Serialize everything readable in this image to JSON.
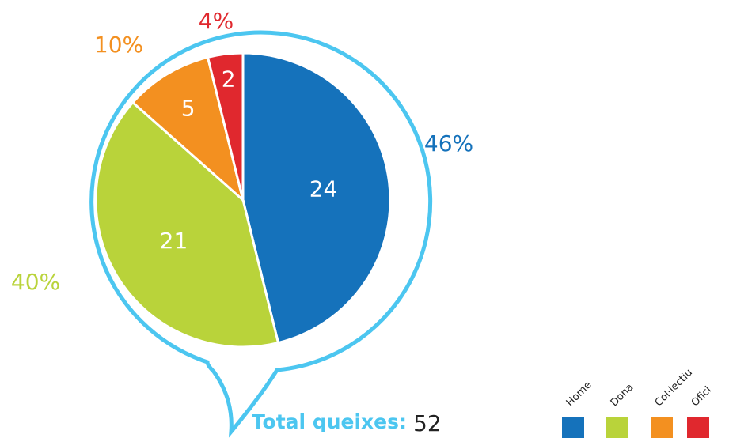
{
  "chart_data": {
    "type": "pie",
    "categories": [
      "Home",
      "Dona",
      "Col·lectiu",
      "Ofici"
    ],
    "values": [
      24,
      21,
      5,
      2
    ],
    "percent_labels": [
      "46%",
      "40%",
      "10%",
      "4%"
    ],
    "colors": [
      "#1572bb",
      "#b9d33a",
      "#f39020",
      "#e0282e"
    ],
    "total_label": "Total queixes:",
    "total": 52
  }
}
